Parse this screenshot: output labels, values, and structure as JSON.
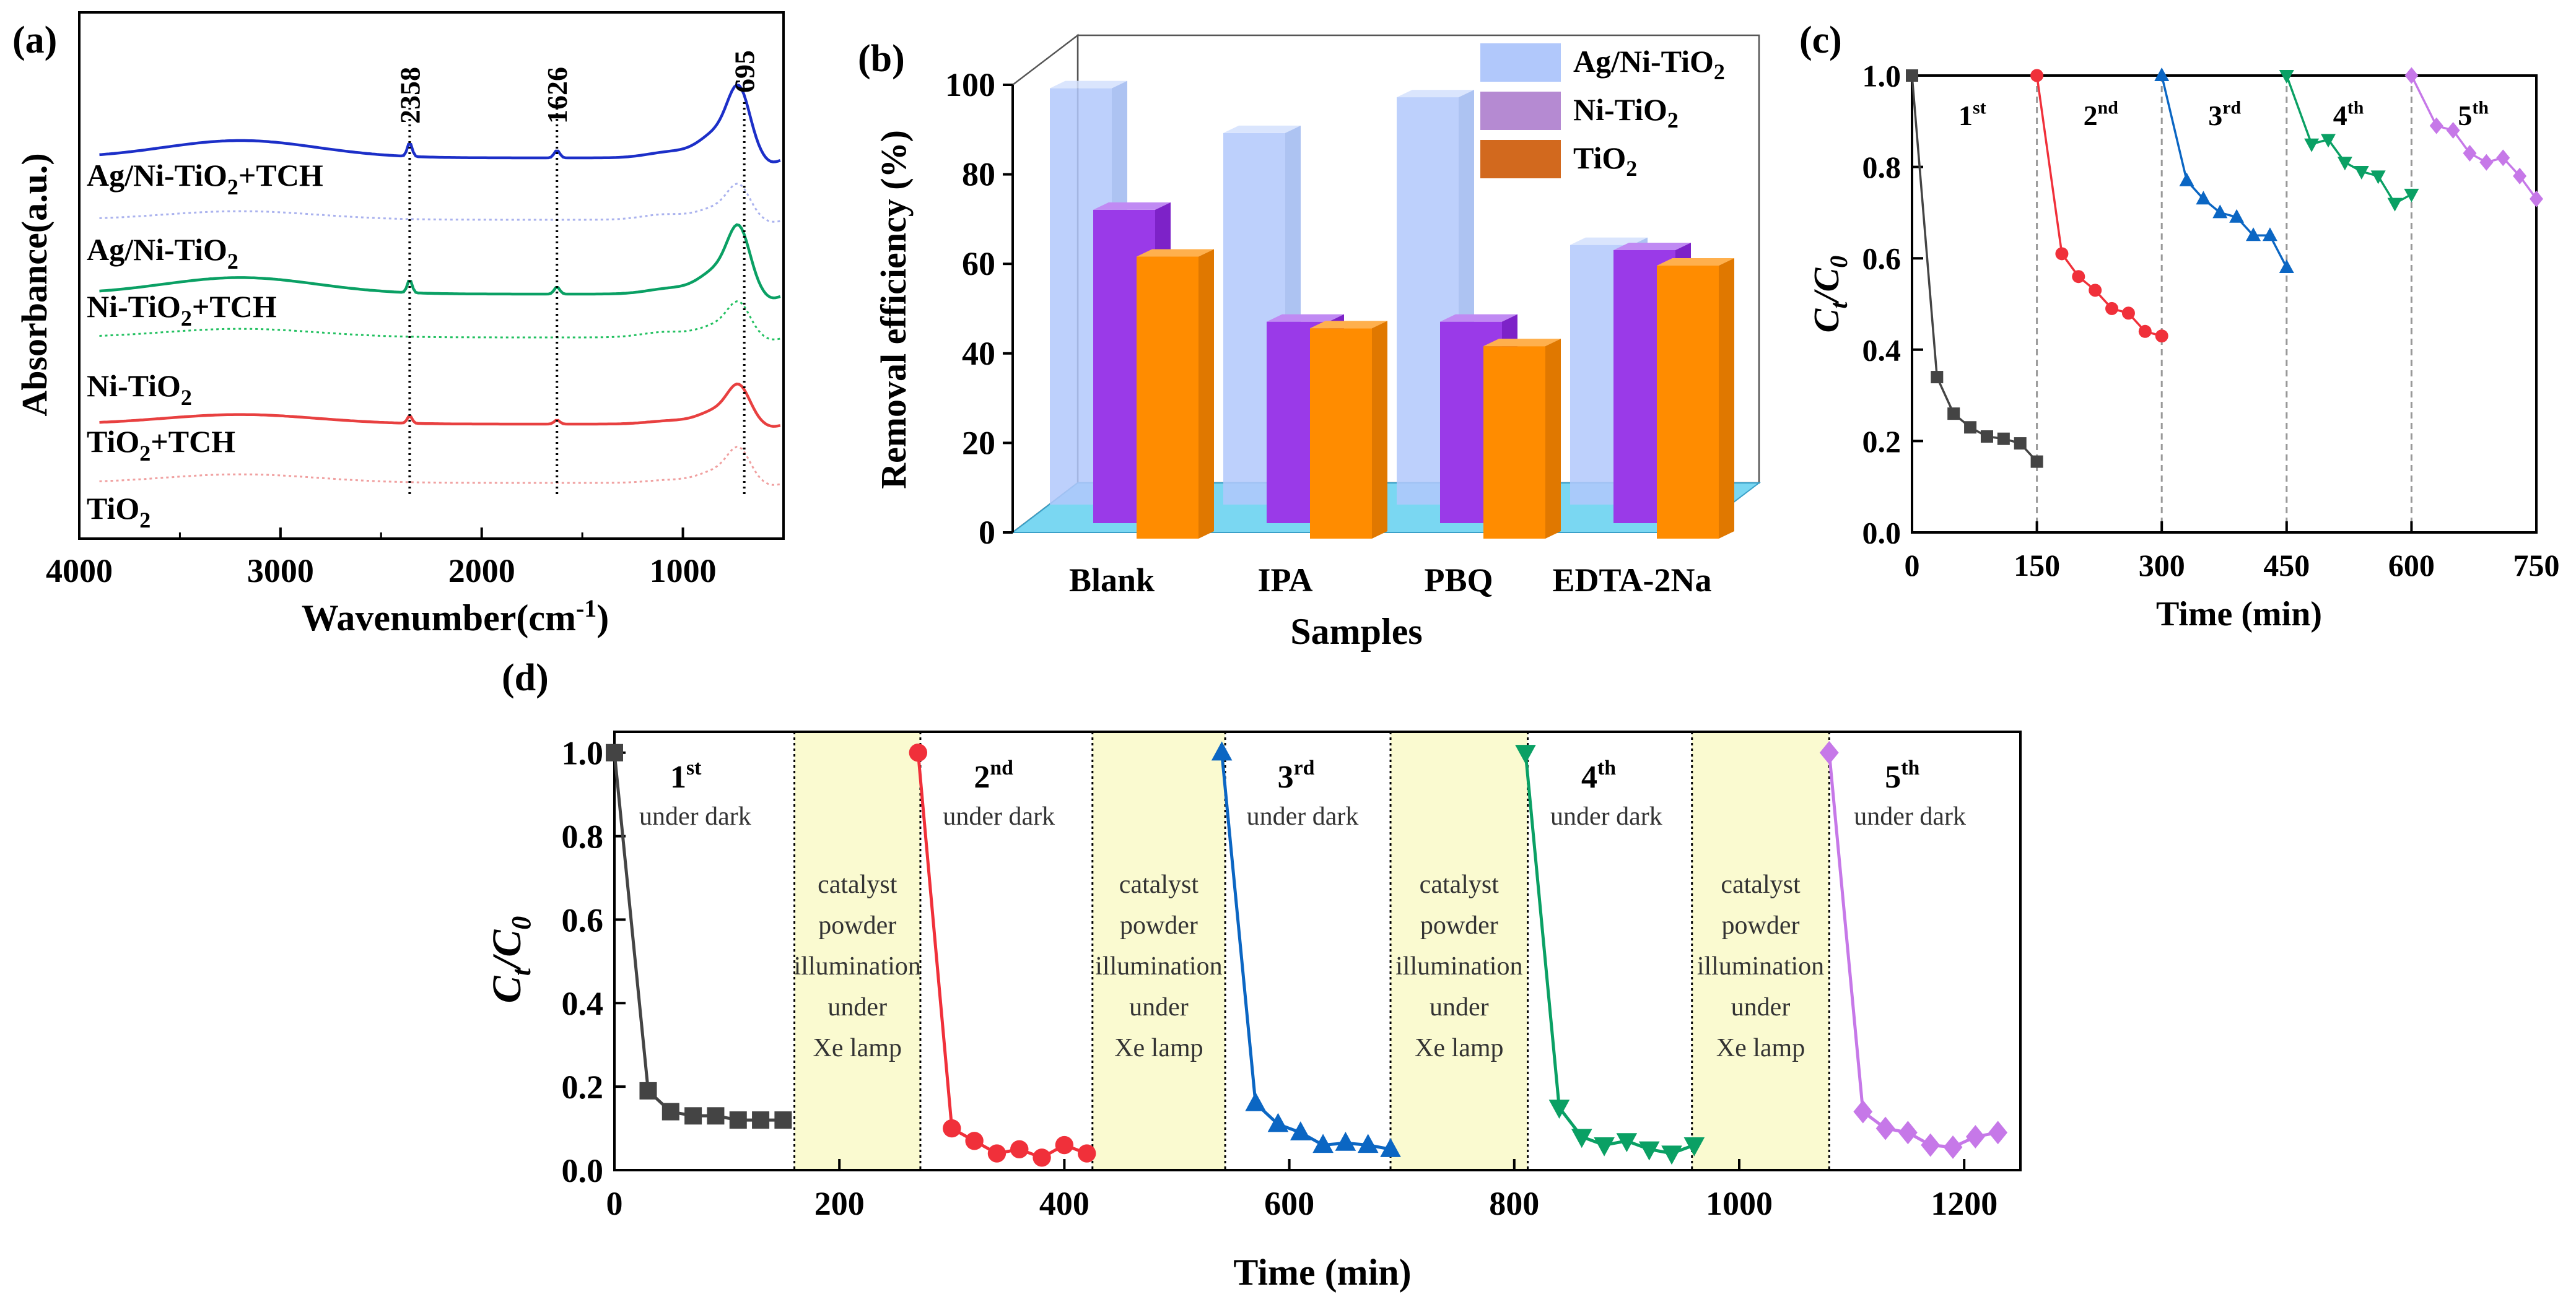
{
  "figure": {
    "background": "#ffffff"
  },
  "colors": {
    "agni": "#b1c8fb",
    "agni_top": "#d3e0fd",
    "ni": "#9a3ae8",
    "ni_top": "#c08af3",
    "tio2": "#ff8c00",
    "tio2_top": "#ffb04d",
    "floor": "#7ad7f2",
    "legend_ni": "#b58ad2",
    "legend_tio2": "#d2691e",
    "black": "#444444",
    "red": "#f0303a",
    "blue": "#0b66c3",
    "green": "#0aa064",
    "purple": "#c678e8",
    "band": "#fafad0",
    "ftir_blue": "#1c2fc8"
  },
  "chart_data": [
    {
      "panel": "a",
      "type": "line",
      "label": "(a)",
      "xlabel": "Wavenumber(cm",
      "xlabel_sup": "-1",
      "xlabel_end": ")",
      "ylabel": "Absorbance(a.u.)",
      "x_ticks": [
        "4000",
        "3000",
        "2000",
        "1000"
      ],
      "xlim": [
        4000,
        500
      ],
      "peaks": [
        "2358",
        "1626",
        "695"
      ],
      "peak_positions": [
        2358,
        1626,
        695
      ],
      "series": [
        {
          "name": "Ag/Ni-TiO2+TCH",
          "label": "Ag/Ni-TiO",
          "sub": "2",
          "tail": "+TCH",
          "style": "solid",
          "color": "#1c2fc8"
        },
        {
          "name": "Ag/Ni-TiO2",
          "label": "Ag/Ni-TiO",
          "sub": "2",
          "tail": "",
          "style": "dotted",
          "color": "#aab2ee"
        },
        {
          "name": "Ni-TiO2+TCH",
          "label": "Ni-TiO",
          "sub": "2",
          "tail": "+TCH",
          "style": "solid",
          "color": "#0aa064"
        },
        {
          "name": "Ni-TiO2",
          "label": "Ni-TiO",
          "sub": "2",
          "tail": "",
          "style": "dotted",
          "color": "#22c060"
        },
        {
          "name": "TiO2+TCH",
          "label": "TiO",
          "sub": "2",
          "tail": "+TCH",
          "style": "solid",
          "color": "#e84040"
        },
        {
          "name": "TiO2",
          "label": "TiO",
          "sub": "2",
          "tail": "",
          "style": "dotted",
          "color": "#f0a0a0"
        }
      ]
    },
    {
      "panel": "b",
      "type": "bar",
      "label": "(b)",
      "categories": [
        "Blank",
        "IPA",
        "PBQ",
        "EDTA-2Na"
      ],
      "series": [
        {
          "name": "Ag/Ni-TiO2",
          "label": "Ag/Ni-TiO",
          "sub": "2",
          "values": [
            93,
            83,
            91,
            58
          ]
        },
        {
          "name": "Ni-TiO2",
          "label": "Ni-TiO",
          "sub": "2",
          "values": [
            70,
            45,
            45,
            61
          ]
        },
        {
          "name": "TiO2",
          "label": "TiO",
          "sub": "2",
          "values": [
            63,
            47,
            43,
            61
          ]
        }
      ],
      "xlabel": "Samples",
      "ylabel": "Removal efficiency (%)",
      "ylim": [
        0,
        100
      ],
      "y_ticks": [
        "0",
        "20",
        "40",
        "60",
        "80",
        "100"
      ]
    },
    {
      "panel": "c",
      "type": "line",
      "label": "(c)",
      "xlabel": "Time (min)",
      "ylabel_main": "C",
      "ylabel_sub": "t",
      "ylabel_mid": "/C",
      "ylabel_sub2": "0",
      "xlim": [
        0,
        750
      ],
      "ylim": [
        0,
        1.0
      ],
      "x_ticks": [
        "0",
        "150",
        "300",
        "450",
        "600",
        "750"
      ],
      "y_ticks": [
        "0.0",
        "0.2",
        "0.4",
        "0.6",
        "0.8",
        "1.0"
      ],
      "run_labels": [
        {
          "main": "1",
          "sup": "st"
        },
        {
          "main": "2",
          "sup": "nd"
        },
        {
          "main": "3",
          "sup": "rd"
        },
        {
          "main": "4",
          "sup": "th"
        },
        {
          "main": "5",
          "sup": "th"
        }
      ],
      "dividers": [
        150,
        300,
        450,
        600
      ],
      "series": [
        {
          "name": "1st",
          "marker": "square",
          "x": [
            0,
            30,
            50,
            70,
            90,
            110,
            130,
            150
          ],
          "y": [
            1.0,
            0.34,
            0.26,
            0.23,
            0.21,
            0.205,
            0.195,
            0.155
          ]
        },
        {
          "name": "2nd",
          "marker": "circle",
          "x": [
            150,
            180,
            200,
            220,
            240,
            260,
            280,
            300
          ],
          "y": [
            1.0,
            0.61,
            0.56,
            0.53,
            0.49,
            0.48,
            0.44,
            0.43
          ]
        },
        {
          "name": "3rd",
          "marker": "triangle",
          "x": [
            300,
            330,
            350,
            370,
            390,
            410,
            430,
            450
          ],
          "y": [
            1.0,
            0.77,
            0.73,
            0.7,
            0.69,
            0.65,
            0.65,
            0.58
          ]
        },
        {
          "name": "4th",
          "marker": "triangle-down",
          "x": [
            450,
            480,
            500,
            520,
            540,
            560,
            580,
            600
          ],
          "y": [
            1.0,
            0.85,
            0.86,
            0.81,
            0.79,
            0.78,
            0.72,
            0.74
          ]
        },
        {
          "name": "5th",
          "marker": "diamond",
          "x": [
            600,
            630,
            650,
            670,
            690,
            710,
            730,
            750
          ],
          "y": [
            1.0,
            0.89,
            0.88,
            0.83,
            0.81,
            0.82,
            0.78,
            0.73
          ]
        }
      ]
    },
    {
      "panel": "d",
      "type": "line",
      "label": "(d)",
      "xlabel": "Time (min)",
      "ylabel_main": "C",
      "ylabel_sub": "t",
      "ylabel_mid": "/C",
      "ylabel_sub2": "0",
      "xlim": [
        0,
        1250
      ],
      "ylim": [
        0,
        1.05
      ],
      "x_ticks": [
        "0",
        "200",
        "400",
        "600",
        "800",
        "1000",
        "1200"
      ],
      "y_ticks": [
        "0.0",
        "0.2",
        "0.4",
        "0.6",
        "0.8",
        "1.0"
      ],
      "run_labels": [
        {
          "main": "1",
          "sup": "st"
        },
        {
          "main": "2",
          "sup": "nd"
        },
        {
          "main": "3",
          "sup": "rd"
        },
        {
          "main": "4",
          "sup": "th"
        },
        {
          "main": "5",
          "sup": "th"
        }
      ],
      "dark_label": "under dark",
      "band_lines": [
        "catalyst",
        "powder",
        "illumination",
        "under",
        "Xe lamp"
      ],
      "bands": [
        [
          160,
          272
        ],
        [
          425,
          543
        ],
        [
          690,
          812
        ],
        [
          958,
          1080
        ]
      ],
      "series": [
        {
          "name": "1st",
          "marker": "square",
          "x": [
            0,
            30,
            50,
            70,
            90,
            110,
            130,
            150
          ],
          "y": [
            1.0,
            0.19,
            0.14,
            0.13,
            0.13,
            0.12,
            0.12,
            0.12
          ]
        },
        {
          "name": "2nd",
          "marker": "circle",
          "x": [
            270,
            300,
            320,
            340,
            360,
            380,
            400,
            420
          ],
          "y": [
            1.0,
            0.1,
            0.07,
            0.04,
            0.05,
            0.03,
            0.06,
            0.04
          ]
        },
        {
          "name": "3rd",
          "marker": "triangle",
          "x": [
            540,
            570,
            590,
            610,
            630,
            650,
            670,
            690
          ],
          "y": [
            1.0,
            0.16,
            0.11,
            0.09,
            0.06,
            0.065,
            0.06,
            0.05
          ]
        },
        {
          "name": "4th",
          "marker": "triangle-down",
          "x": [
            810,
            840,
            860,
            880,
            900,
            920,
            940,
            960
          ],
          "y": [
            1.0,
            0.15,
            0.08,
            0.06,
            0.07,
            0.05,
            0.04,
            0.06
          ]
        },
        {
          "name": "5th",
          "marker": "diamond",
          "x": [
            1080,
            1110,
            1130,
            1150,
            1170,
            1190,
            1210,
            1230
          ],
          "y": [
            1.0,
            0.14,
            0.1,
            0.09,
            0.06,
            0.055,
            0.08,
            0.09
          ]
        }
      ]
    }
  ]
}
